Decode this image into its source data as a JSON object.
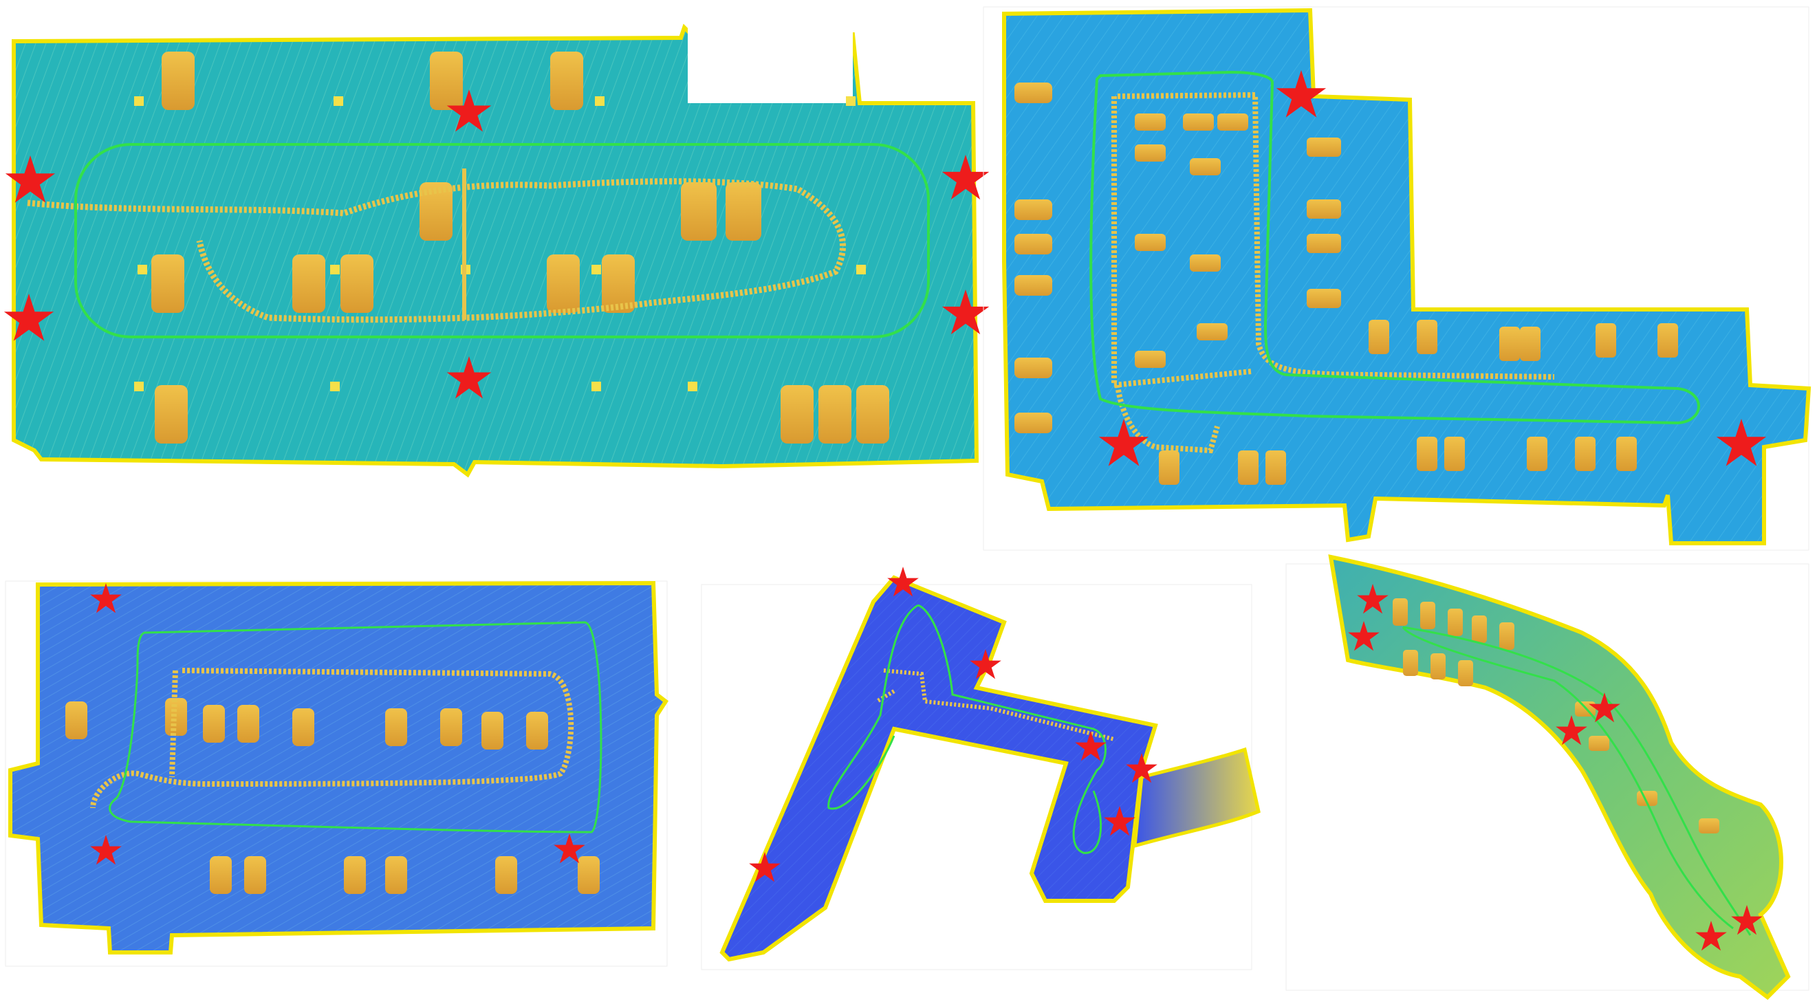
{
  "palette": {
    "background": "#ffffff",
    "map_outline": "#f2e400",
    "map1_fill": "#27b5b9",
    "map2_fill": "#2aa3e0",
    "map3_fill": "#3f7be3",
    "map4_fill": "#3a55e8",
    "map5_fill": "#5ec08a",
    "car": "#e9b640",
    "pillar": "#f5e04a",
    "trajectory": "#33e04a",
    "scan_trail": "#e8c44a",
    "star": "#ee1c1c",
    "grid": "#e6e6e6"
  },
  "panels": [
    {
      "name": "map-panel-1",
      "fill_key": "map1_fill",
      "star_count": 6
    },
    {
      "name": "map-panel-2",
      "fill_key": "map2_fill",
      "star_count": 3
    },
    {
      "name": "map-panel-3",
      "fill_key": "map3_fill",
      "star_count": 3
    },
    {
      "name": "map-panel-4",
      "fill_key": "map4_fill",
      "star_count": 6
    },
    {
      "name": "map-panel-5",
      "fill_key": "map5_fill",
      "star_count": 6
    }
  ],
  "icons": {
    "marker": "star-icon"
  }
}
